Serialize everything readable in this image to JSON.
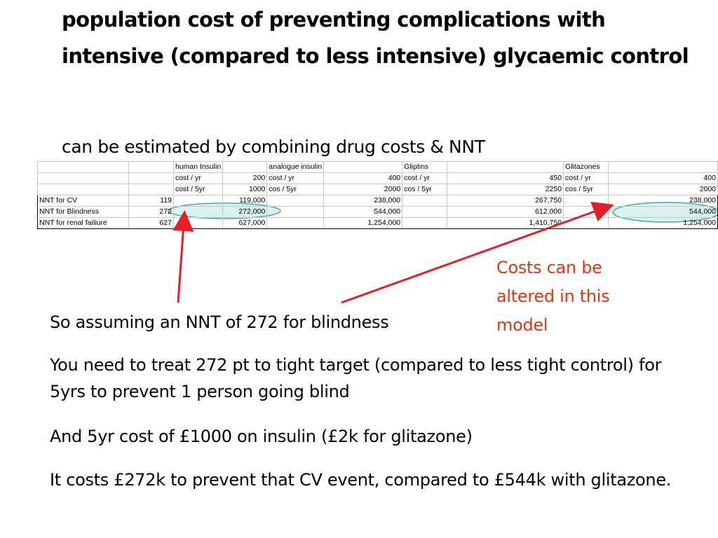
{
  "slide": {
    "title": "population cost of preventing complications with intensive (compared to less intensive) glycaemic control",
    "subtitle": "can be estimated by combining drug costs & NNT",
    "note": "Costs can be altered in this model",
    "paragraphs": [
      "So assuming an NNT of 272 for blindness",
      "You need to treat 272 pt to tight target (compared to less tight control) for 5yrs to prevent 1 person going blind",
      "And 5yr cost of £1000 on insulin (£2k for glitazone)",
      "It costs £272k to prevent that CV event, compared to £544k with glitazone."
    ]
  },
  "table": {
    "rows": [
      [
        "",
        "",
        "human Insulin",
        "",
        "analogue insulin",
        "",
        "Gliptins",
        "",
        "Glitazones",
        ""
      ],
      [
        "",
        "",
        "cost / yr",
        "200",
        "cost / yr",
        "400",
        "cost / yr",
        "450",
        "cost / yr",
        "400"
      ],
      [
        "",
        "",
        "cost / 5yr",
        "1000",
        "cos / 5yr",
        "2000",
        "cos / 5yr",
        "2250",
        "cos / 5yr",
        "2000"
      ],
      [
        "NNT for CV",
        "119",
        "",
        "119,000",
        "",
        "238,000",
        "",
        "267,750",
        "",
        "238,000"
      ],
      [
        "NNT for Blindness",
        "272",
        "",
        "272,000",
        "",
        "544,000",
        "",
        "612,000",
        "",
        "544,000"
      ],
      [
        "NNT for renal failiure",
        "627",
        "",
        "627,000",
        "",
        "1,254,000",
        "",
        "1,410,750",
        "",
        "1,254,000"
      ]
    ]
  },
  "colors": {
    "highlight_fill": "#d9f2ee",
    "highlight_stroke": "#4aa8a0",
    "arrow": "#e31e24",
    "note_text": "#e8340c"
  }
}
